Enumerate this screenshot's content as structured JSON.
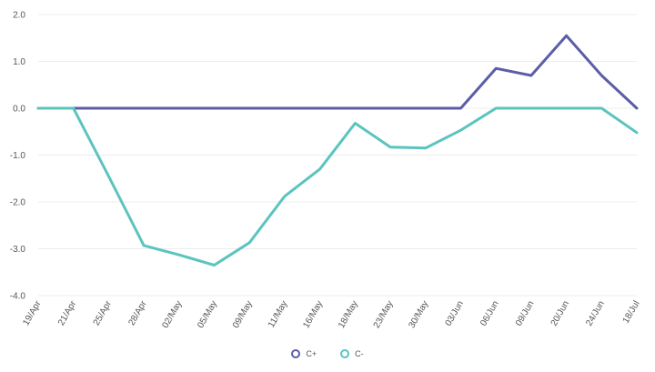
{
  "chart_data": {
    "type": "line",
    "categories": [
      "19/Apr",
      "21/Apr",
      "25/Apr",
      "28/Apr",
      "02/May",
      "05/May",
      "09/May",
      "11/May",
      "16/May",
      "18/May",
      "23/May",
      "30/May",
      "03/Jun",
      "06/Jun",
      "09/Jun",
      "20/Jun",
      "24/Jun",
      "18/Jul"
    ],
    "ylim": [
      -4.0,
      2.0
    ],
    "yticks": [
      "2.0",
      "1.0",
      "0.0",
      "-1.0",
      "-2.0",
      "-3.0",
      "-4.0"
    ],
    "grid": true,
    "legend_position": "bottom-center",
    "series": [
      {
        "name": "C+",
        "color": "#5b5ea6",
        "values": [
          0,
          0,
          0,
          0,
          0,
          0,
          0,
          0,
          0,
          0,
          0,
          0,
          0,
          0.85,
          0.7,
          1.55,
          0.7,
          0
        ]
      },
      {
        "name": "C-",
        "color": "#5bc4bf",
        "values": [
          0,
          0,
          -1.45,
          -2.93,
          -3.13,
          -3.35,
          -2.87,
          -1.88,
          -1.3,
          -0.32,
          -0.83,
          -0.85,
          -0.47,
          0,
          0,
          0,
          0,
          -0.52
        ]
      }
    ]
  }
}
